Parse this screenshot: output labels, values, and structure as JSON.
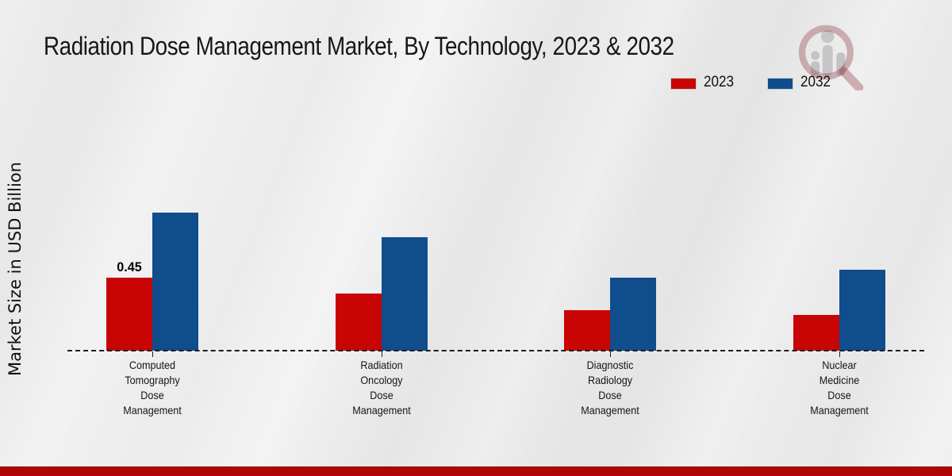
{
  "title": "Radiation Dose Management Market, By Technology, 2023 & 2032",
  "watermark": {
    "icon": "magnifier-barchart-logo-icon"
  },
  "footer": {
    "band_color": "#b10505"
  },
  "chart_data": {
    "type": "bar",
    "title": "Radiation Dose Management Market, By Technology, 2023 & 2032",
    "xlabel": "",
    "ylabel": "Market Size in USD Billion",
    "ylim": [
      0,
      1
    ],
    "grid": false,
    "legend_position": "top-right",
    "baseline_style": "dashed",
    "categories": [
      "Computed Tomography Dose Management",
      "Radiation Oncology Dose Management",
      "Diagnostic Radiology Dose Management",
      "Nuclear Medicine Dose Management"
    ],
    "categories_lines": [
      [
        "Computed",
        "Tomography",
        "Dose",
        "Management"
      ],
      [
        "Radiation",
        "Oncology",
        "Dose",
        "Management"
      ],
      [
        "Diagnostic",
        "Radiology",
        "Dose",
        "Management"
      ],
      [
        "Nuclear",
        "Medicine",
        "Dose",
        "Management"
      ]
    ],
    "series": [
      {
        "name": "2023",
        "color": "#c80404",
        "values": [
          0.45,
          0.35,
          0.25,
          0.22
        ]
      },
      {
        "name": "2032",
        "color": "#0f4d8c",
        "values": [
          0.85,
          0.7,
          0.45,
          0.5
        ]
      }
    ],
    "annotations": [
      {
        "series": "2023",
        "category_index": 0,
        "text": "0.45"
      }
    ]
  }
}
